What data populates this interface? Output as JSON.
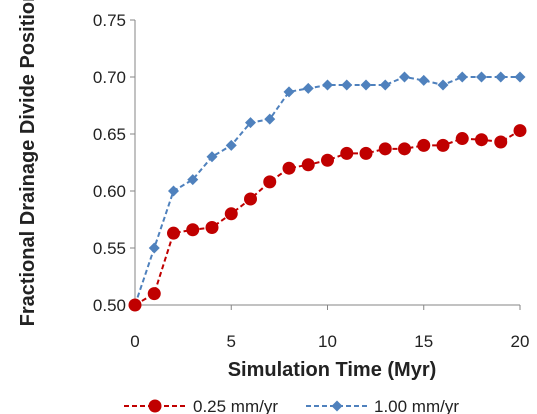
{
  "chart_data": {
    "type": "line",
    "title": "",
    "xlabel": "Simulation Time (Myr)",
    "ylabel": "Fractional Drainage Divide Position",
    "xlim": [
      0,
      20
    ],
    "ylim": [
      0.5,
      0.75
    ],
    "x_ticks": [
      "0",
      "5",
      "10",
      "15",
      "20"
    ],
    "y_ticks": [
      "0.50",
      "0.55",
      "0.60",
      "0.65",
      "0.70",
      "0.75"
    ],
    "grid": false,
    "legend_position": "bottom",
    "series": [
      {
        "name": "0.25 mm/yr",
        "color": "#c00000",
        "marker": "circle",
        "x": [
          0,
          1,
          2,
          3,
          4,
          5,
          6,
          7,
          8,
          9,
          10,
          11,
          12,
          13,
          14,
          15,
          16,
          17,
          18,
          19,
          20
        ],
        "values": [
          0.5,
          0.51,
          0.563,
          0.566,
          0.568,
          0.58,
          0.593,
          0.608,
          0.62,
          0.623,
          0.627,
          0.633,
          0.633,
          0.637,
          0.637,
          0.64,
          0.64,
          0.646,
          0.645,
          0.643,
          0.653
        ]
      },
      {
        "name": "1.00 mm/yr",
        "color": "#4f81bd",
        "marker": "diamond",
        "x": [
          0,
          1,
          2,
          3,
          4,
          5,
          6,
          7,
          8,
          9,
          10,
          11,
          12,
          13,
          14,
          15,
          16,
          17,
          18,
          19,
          20
        ],
        "values": [
          0.5,
          0.55,
          0.6,
          0.61,
          0.63,
          0.64,
          0.66,
          0.663,
          0.687,
          0.69,
          0.693,
          0.693,
          0.693,
          0.693,
          0.7,
          0.697,
          0.693,
          0.7,
          0.7,
          0.7,
          0.7
        ]
      }
    ]
  }
}
